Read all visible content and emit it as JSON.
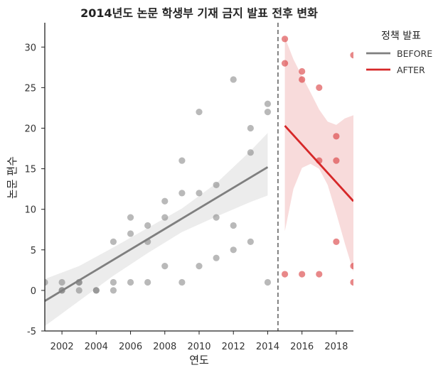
{
  "chart_data": {
    "type": "scatter",
    "title": "2014년도 논문 학생부 기재 금지 발표 전후 변화",
    "xlabel": "연도",
    "ylabel": "논문 편수",
    "xlim": [
      2001,
      2019
    ],
    "ylim": [
      -5,
      33
    ],
    "xticks": [
      2002,
      2004,
      2006,
      2008,
      2010,
      2012,
      2014,
      2016,
      2018
    ],
    "yticks": [
      -5,
      0,
      5,
      10,
      15,
      20,
      25,
      30
    ],
    "policy_line_x": 2014.6,
    "legend": {
      "title": "정책 발표",
      "position": "top-right",
      "entries": [
        {
          "label": "BEFORE",
          "color": "#7f7f7f"
        },
        {
          "label": "AFTER",
          "color": "#d62728"
        }
      ]
    },
    "series": [
      {
        "name": "BEFORE",
        "color": "#7f7f7f",
        "points": [
          [
            2001,
            1
          ],
          [
            2002,
            0
          ],
          [
            2002,
            1
          ],
          [
            2002,
            0
          ],
          [
            2003,
            1
          ],
          [
            2003,
            0
          ],
          [
            2003,
            1
          ],
          [
            2004,
            0
          ],
          [
            2004,
            0
          ],
          [
            2005,
            6
          ],
          [
            2005,
            1
          ],
          [
            2005,
            0
          ],
          [
            2006,
            9
          ],
          [
            2006,
            7
          ],
          [
            2006,
            1
          ],
          [
            2007,
            8
          ],
          [
            2007,
            6
          ],
          [
            2007,
            1
          ],
          [
            2008,
            11
          ],
          [
            2008,
            9
          ],
          [
            2008,
            3
          ],
          [
            2009,
            16
          ],
          [
            2009,
            12
          ],
          [
            2009,
            1
          ],
          [
            2010,
            22
          ],
          [
            2010,
            12
          ],
          [
            2010,
            3
          ],
          [
            2011,
            13
          ],
          [
            2011,
            9
          ],
          [
            2011,
            4
          ],
          [
            2012,
            26
          ],
          [
            2012,
            8
          ],
          [
            2012,
            5
          ],
          [
            2013,
            20
          ],
          [
            2013,
            17
          ],
          [
            2013,
            6
          ],
          [
            2014,
            23
          ],
          [
            2014,
            22
          ],
          [
            2014,
            1
          ]
        ],
        "regression": {
          "x": [
            2001,
            2014
          ],
          "y": [
            -1.3,
            15.2
          ]
        },
        "ci_upper": [
          [
            2001,
            1.4
          ],
          [
            2003,
            3.0
          ],
          [
            2005,
            5.3
          ],
          [
            2007,
            7.7
          ],
          [
            2009,
            10.1
          ],
          [
            2011,
            13.2
          ],
          [
            2013,
            17.2
          ],
          [
            2014,
            19.4
          ]
        ],
        "ci_lower": [
          [
            2001,
            -4.4
          ],
          [
            2003,
            -1.3
          ],
          [
            2005,
            1.8
          ],
          [
            2007,
            4.6
          ],
          [
            2009,
            7.2
          ],
          [
            2011,
            9.1
          ],
          [
            2013,
            10.9
          ],
          [
            2014,
            11.7
          ]
        ]
      },
      {
        "name": "AFTER",
        "color": "#d62728",
        "points": [
          [
            2015,
            31
          ],
          [
            2015,
            28
          ],
          [
            2015,
            2
          ],
          [
            2016,
            27
          ],
          [
            2016,
            26
          ],
          [
            2016,
            2
          ],
          [
            2017,
            25
          ],
          [
            2017,
            16
          ],
          [
            2017,
            2
          ],
          [
            2018,
            19
          ],
          [
            2018,
            16
          ],
          [
            2018,
            6
          ],
          [
            2019,
            29
          ],
          [
            2019,
            3
          ],
          [
            2019,
            1
          ]
        ],
        "regression": {
          "x": [
            2015,
            2019
          ],
          "y": [
            20.3,
            11.0
          ]
        },
        "ci_upper": [
          [
            2015,
            31.2
          ],
          [
            2015.5,
            28.5
          ],
          [
            2016,
            26.4
          ],
          [
            2016.5,
            24.4
          ],
          [
            2017,
            22.3
          ],
          [
            2017.5,
            20.8
          ],
          [
            2018,
            20.4
          ],
          [
            2018.5,
            21.2
          ],
          [
            2019,
            21.6
          ]
        ],
        "ci_lower": [
          [
            2015,
            7.3
          ],
          [
            2015.5,
            12.5
          ],
          [
            2016,
            15.1
          ],
          [
            2016.5,
            15.6
          ],
          [
            2017,
            15.0
          ],
          [
            2017.5,
            13.0
          ],
          [
            2018,
            9.5
          ],
          [
            2018.5,
            5.8
          ],
          [
            2019,
            2.3
          ]
        ]
      }
    ]
  }
}
